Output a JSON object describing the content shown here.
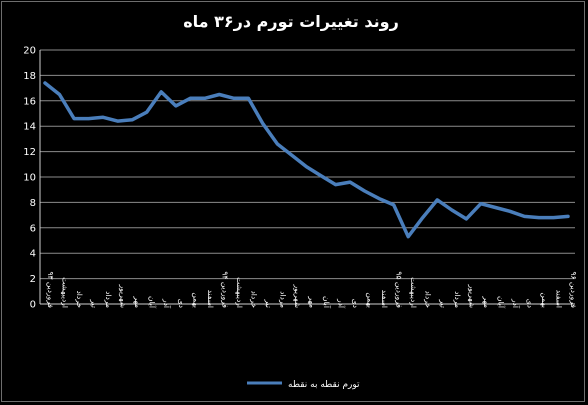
{
  "chart_data": {
    "type": "line",
    "title": "روند تغییرات تورم در۳۶ ماه",
    "xlabel": "",
    "ylabel": "",
    "ylim": [
      0,
      20
    ],
    "yticks": [
      0,
      2,
      4,
      6,
      8,
      10,
      12,
      14,
      16,
      18,
      20
    ],
    "grid": true,
    "legend_position": "bottom",
    "categories": [
      "فروردین ۹۳",
      "اردیبهشت",
      "خرداد",
      "تیر",
      "مرداد",
      "شهریور",
      "مهر",
      "آبان",
      "آذر",
      "دی",
      "بهمن",
      "اسفند",
      "فروردین ۹۴",
      "اردیبهشت",
      "خرداد",
      "تیر",
      "مرداد",
      "شهریور",
      "مهر",
      "آبان",
      "آذر",
      "دی",
      "بهمن",
      "اسفند",
      "فروردین ۹۵",
      "اردیبهشت",
      "خرداد",
      "تیر",
      "مرداد",
      "شهریور",
      "مهر",
      "آبان",
      "آذر",
      "دی",
      "بهمن",
      "اسفند",
      "فروردین ۹۶"
    ],
    "series": [
      {
        "name": "تورم نقطه به نقطه",
        "color": "#4a7ebb",
        "values": [
          17.4,
          16.5,
          14.6,
          14.6,
          14.7,
          14.4,
          14.5,
          15.1,
          16.7,
          15.6,
          16.2,
          16.2,
          16.5,
          16.2,
          16.2,
          14.2,
          12.6,
          11.7,
          10.8,
          10.1,
          9.4,
          9.6,
          8.9,
          8.3,
          7.8,
          5.3,
          6.8,
          8.2,
          7.4,
          6.7,
          7.9,
          7.6,
          7.3,
          6.9,
          6.8,
          6.8,
          6.9
        ]
      }
    ]
  }
}
